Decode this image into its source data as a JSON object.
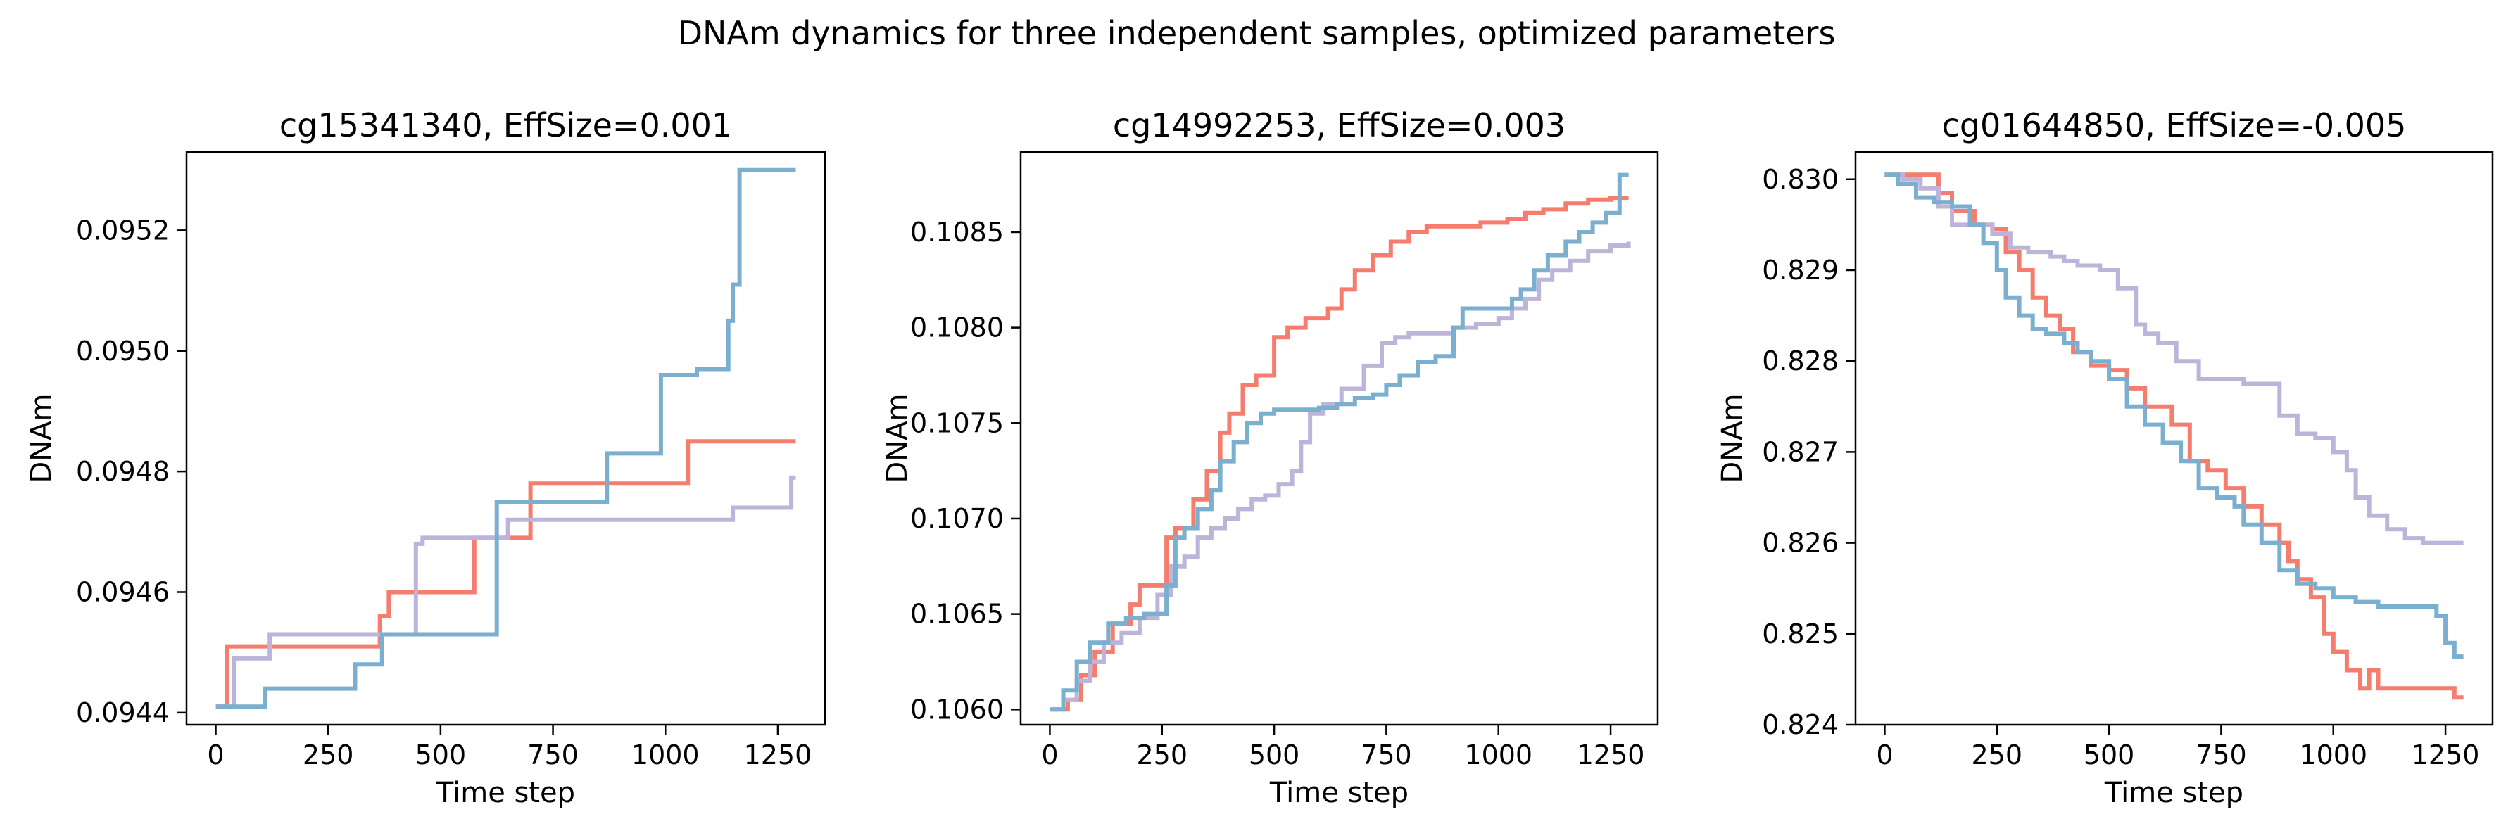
{
  "figure": {
    "suptitle": "DNAm dynamics for three independent samples, optimized parameters"
  },
  "colors": {
    "salmon": "#F47D6E",
    "blue": "#7BAFD0",
    "lavender": "#BDB4D9",
    "axis": "#000000",
    "background": "#FFFFFF"
  },
  "chart_data": [
    {
      "type": "line",
      "title": "cg15341340, EffSize=0.001",
      "xlabel": "Time step",
      "ylabel": "DNAm",
      "xlim": [
        -65,
        1355
      ],
      "ylim": [
        0.09438,
        0.09533
      ],
      "xticks": [
        0,
        250,
        500,
        750,
        1000,
        1250
      ],
      "xtick_labels": [
        "0",
        "250",
        "500",
        "750",
        "1000",
        "1250"
      ],
      "yticks": [
        0.0944,
        0.0946,
        0.0948,
        0.095,
        0.0952
      ],
      "ytick_labels": [
        "0.0944",
        "0.0946",
        "0.0948",
        "0.0950",
        "0.0952"
      ],
      "step": true,
      "series": [
        {
          "color": "salmon",
          "x": [
            0,
            25,
            25,
            365,
            365,
            385,
            385,
            575,
            575,
            700,
            700,
            1050,
            1050,
            1290
          ],
          "y": [
            0.09441,
            0.09441,
            0.09451,
            0.09451,
            0.09456,
            0.09456,
            0.0946,
            0.0946,
            0.09469,
            0.09469,
            0.09478,
            0.09478,
            0.09485,
            0.09485
          ]
        },
        {
          "color": "lavender",
          "x": [
            0,
            40,
            40,
            120,
            120,
            445,
            445,
            460,
            460,
            650,
            650,
            1150,
            1150,
            1280,
            1280,
            1290
          ],
          "y": [
            0.09441,
            0.09441,
            0.09449,
            0.09449,
            0.09453,
            0.09453,
            0.09468,
            0.09468,
            0.09469,
            0.09469,
            0.09472,
            0.09472,
            0.09474,
            0.09474,
            0.09479,
            0.09479
          ]
        },
        {
          "color": "blue",
          "x": [
            0,
            110,
            110,
            310,
            310,
            370,
            370,
            570,
            570,
            625,
            625,
            870,
            870,
            990,
            990,
            1070,
            1070,
            1140,
            1140,
            1150,
            1150,
            1165,
            1165,
            1290
          ],
          "y": [
            0.09441,
            0.09441,
            0.09444,
            0.09444,
            0.09448,
            0.09448,
            0.09453,
            0.09453,
            0.09453,
            0.09453,
            0.09475,
            0.09475,
            0.09483,
            0.09483,
            0.09496,
            0.09496,
            0.09497,
            0.09497,
            0.09505,
            0.09505,
            0.09511,
            0.09511,
            0.0953,
            0.0953
          ]
        }
      ]
    },
    {
      "type": "line",
      "title": "cg14992253, EffSize=0.003",
      "xlabel": "Time step",
      "ylabel": "DNAm",
      "xlim": [
        -65,
        1355
      ],
      "ylim": [
        0.10592,
        0.10892
      ],
      "xticks": [
        0,
        250,
        500,
        750,
        1000,
        1250
      ],
      "xtick_labels": [
        "0",
        "250",
        "500",
        "750",
        "1000",
        "1250"
      ],
      "yticks": [
        0.106,
        0.1065,
        0.107,
        0.1075,
        0.108,
        0.1085
      ],
      "ytick_labels": [
        "0.1060",
        "0.1065",
        "0.1070",
        "0.1075",
        "0.1080",
        "0.1085"
      ],
      "step": true,
      "series": [
        {
          "color": "salmon",
          "x": [
            0,
            40,
            70,
            100,
            140,
            180,
            200,
            260,
            280,
            320,
            350,
            380,
            400,
            430,
            460,
            500,
            530,
            570,
            620,
            650,
            680,
            720,
            760,
            800,
            840,
            900,
            960,
            1020,
            1060,
            1100,
            1150,
            1200,
            1250,
            1290
          ],
          "y": [
            0.106,
            0.10605,
            0.10618,
            0.1063,
            0.10645,
            0.10655,
            0.10665,
            0.1069,
            0.10695,
            0.1071,
            0.10725,
            0.10745,
            0.10755,
            0.1077,
            0.10775,
            0.10795,
            0.108,
            0.10805,
            0.1081,
            0.1082,
            0.1083,
            0.10838,
            0.10845,
            0.1085,
            0.10853,
            0.10853,
            0.10855,
            0.10857,
            0.1086,
            0.10862,
            0.10865,
            0.10867,
            0.10868,
            0.10868
          ]
        },
        {
          "color": "lavender",
          "x": [
            0,
            30,
            60,
            90,
            120,
            160,
            200,
            240,
            270,
            300,
            330,
            360,
            390,
            420,
            450,
            480,
            510,
            540,
            560,
            580,
            610,
            650,
            700,
            740,
            770,
            800,
            900,
            950,
            1000,
            1030,
            1060,
            1090,
            1120,
            1160,
            1200,
            1250,
            1290
          ],
          "y": [
            0.106,
            0.10605,
            0.10615,
            0.10625,
            0.10635,
            0.1064,
            0.10648,
            0.1066,
            0.10675,
            0.1068,
            0.1069,
            0.10695,
            0.107,
            0.10705,
            0.1071,
            0.10712,
            0.10718,
            0.10725,
            0.1074,
            0.10755,
            0.1076,
            0.10768,
            0.1078,
            0.10792,
            0.10795,
            0.10797,
            0.108,
            0.10802,
            0.10805,
            0.1081,
            0.10815,
            0.10825,
            0.1083,
            0.10835,
            0.1084,
            0.10843,
            0.10845
          ]
        },
        {
          "color": "blue",
          "x": [
            0,
            30,
            60,
            90,
            130,
            170,
            210,
            260,
            280,
            300,
            330,
            360,
            380,
            410,
            440,
            470,
            500,
            550,
            600,
            640,
            680,
            720,
            750,
            780,
            820,
            860,
            900,
            920,
            1000,
            1030,
            1050,
            1080,
            1110,
            1150,
            1180,
            1210,
            1240,
            1270,
            1290
          ],
          "y": [
            0.106,
            0.1061,
            0.10625,
            0.10635,
            0.10645,
            0.10648,
            0.1065,
            0.10665,
            0.1069,
            0.10695,
            0.10705,
            0.10715,
            0.1073,
            0.1074,
            0.1075,
            0.10755,
            0.10757,
            0.10757,
            0.10758,
            0.1076,
            0.10763,
            0.10765,
            0.1077,
            0.10775,
            0.10782,
            0.10785,
            0.108,
            0.1081,
            0.1081,
            0.10815,
            0.1082,
            0.1083,
            0.10838,
            0.10845,
            0.1085,
            0.10855,
            0.1086,
            0.1088,
            0.1088
          ]
        }
      ]
    },
    {
      "type": "line",
      "title": "cg01644850, EffSize=-0.005",
      "xlabel": "Time step",
      "ylabel": "DNAm",
      "xlim": [
        -65,
        1355
      ],
      "ylim": [
        0.824,
        0.8303
      ],
      "xticks": [
        0,
        250,
        500,
        750,
        1000,
        1250
      ],
      "xtick_labels": [
        "0",
        "250",
        "500",
        "750",
        "1000",
        "1250"
      ],
      "yticks": [
        0.824,
        0.825,
        0.826,
        0.827,
        0.828,
        0.829,
        0.83
      ],
      "ytick_labels": [
        "0.824",
        "0.825",
        "0.826",
        "0.827",
        "0.828",
        "0.829",
        "0.830"
      ],
      "step": true,
      "series": [
        {
          "color": "salmon",
          "x": [
            0,
            80,
            120,
            150,
            200,
            240,
            270,
            300,
            330,
            360,
            390,
            420,
            460,
            500,
            540,
            580,
            610,
            640,
            680,
            720,
            760,
            800,
            840,
            880,
            900,
            920,
            950,
            980,
            1000,
            1030,
            1060,
            1080,
            1100,
            1120,
            1150,
            1200,
            1250,
            1270,
            1290
          ],
          "y": [
            0.83005,
            0.83005,
            0.82985,
            0.82965,
            0.8295,
            0.82945,
            0.8292,
            0.829,
            0.8287,
            0.8285,
            0.82835,
            0.8281,
            0.82795,
            0.8279,
            0.8277,
            0.8275,
            0.8275,
            0.8273,
            0.8269,
            0.8268,
            0.8266,
            0.8264,
            0.8262,
            0.826,
            0.8258,
            0.8256,
            0.8254,
            0.825,
            0.8248,
            0.8246,
            0.8244,
            0.8246,
            0.8244,
            0.8244,
            0.8244,
            0.8244,
            0.8244,
            0.8243,
            0.8243
          ]
        },
        {
          "color": "lavender",
          "x": [
            0,
            40,
            80,
            120,
            150,
            200,
            240,
            280,
            320,
            370,
            400,
            430,
            480,
            520,
            560,
            580,
            610,
            650,
            700,
            760,
            800,
            850,
            880,
            920,
            960,
            1000,
            1030,
            1050,
            1080,
            1120,
            1160,
            1200,
            1250,
            1290
          ],
          "y": [
            0.83005,
            0.83,
            0.8299,
            0.8297,
            0.8295,
            0.8295,
            0.8294,
            0.82925,
            0.8292,
            0.82915,
            0.8291,
            0.82905,
            0.829,
            0.8288,
            0.8284,
            0.8283,
            0.8282,
            0.828,
            0.8278,
            0.8278,
            0.82775,
            0.82775,
            0.8274,
            0.8272,
            0.82715,
            0.827,
            0.8268,
            0.8265,
            0.8263,
            0.82615,
            0.82605,
            0.826,
            0.826,
            0.826
          ]
        },
        {
          "color": "blue",
          "x": [
            0,
            30,
            70,
            110,
            150,
            190,
            220,
            250,
            270,
            300,
            330,
            360,
            400,
            430,
            460,
            500,
            540,
            580,
            620,
            660,
            700,
            740,
            780,
            800,
            840,
            880,
            920,
            960,
            1000,
            1050,
            1100,
            1150,
            1200,
            1230,
            1250,
            1270,
            1290
          ],
          "y": [
            0.83005,
            0.82995,
            0.8298,
            0.82975,
            0.8297,
            0.8295,
            0.8293,
            0.829,
            0.8287,
            0.8285,
            0.82835,
            0.8283,
            0.8282,
            0.8281,
            0.828,
            0.8278,
            0.8275,
            0.8273,
            0.8271,
            0.8269,
            0.8266,
            0.8265,
            0.8264,
            0.8262,
            0.826,
            0.8257,
            0.82555,
            0.8255,
            0.8254,
            0.82535,
            0.8253,
            0.8253,
            0.8253,
            0.8252,
            0.8249,
            0.82475,
            0.82475
          ]
        }
      ]
    }
  ]
}
